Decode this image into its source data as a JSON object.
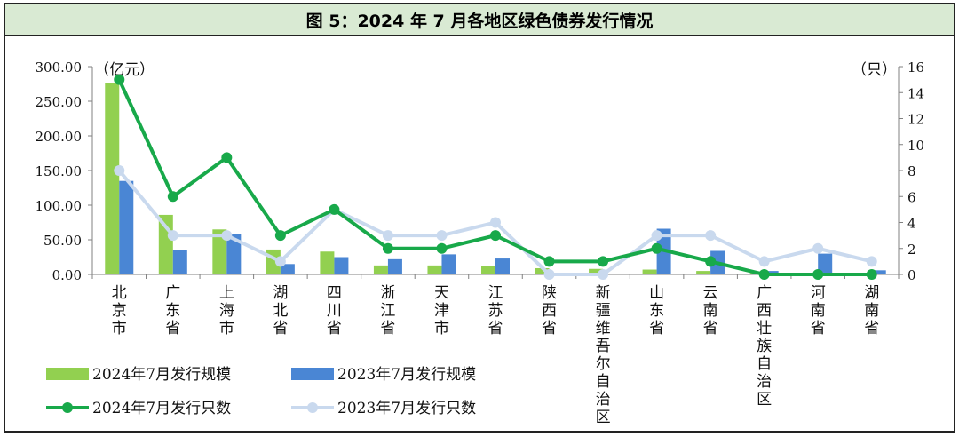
{
  "title": "图 5：2024 年 7 月各地区绿色债券发行情况",
  "chart_data": {
    "type": "bar",
    "categories": [
      "北京市",
      "广东省",
      "上海市",
      "湖北省",
      "四川省",
      "浙江省",
      "天津市",
      "江苏省",
      "陕西省",
      "新疆维吾尔自治区",
      "山东省",
      "云南省",
      "广西壮族自治区",
      "河南省",
      "湖南省"
    ],
    "left_axis": {
      "unit_label": "（亿元）",
      "ylim": [
        0,
        300
      ],
      "ticks": [
        "0.00",
        "50.00",
        "100.00",
        "150.00",
        "200.00",
        "250.00",
        "300.00"
      ]
    },
    "right_axis": {
      "unit_label": "（只）",
      "ylim": [
        0,
        16
      ],
      "ticks": [
        "0",
        "2",
        "4",
        "6",
        "8",
        "10",
        "12",
        "14",
        "16"
      ]
    },
    "series": [
      {
        "name": "2024年7月发行规模",
        "kind": "bar",
        "axis": "left",
        "color": "#92d050",
        "values": [
          276,
          86,
          65,
          36,
          33,
          13,
          13,
          12,
          9,
          8,
          7,
          5,
          2,
          1,
          0.5
        ]
      },
      {
        "name": "2023年7月发行规模",
        "kind": "bar",
        "axis": "left",
        "color": "#4a86d4",
        "values": [
          135,
          35,
          58,
          15,
          25,
          22,
          29,
          23,
          0,
          0,
          66,
          34,
          5,
          30,
          6
        ]
      },
      {
        "name": "2024年7月发行只数",
        "kind": "line",
        "axis": "right",
        "color": "#18a94a",
        "values": [
          15,
          6,
          9,
          3,
          5,
          2,
          2,
          3,
          1,
          1,
          2,
          1,
          0,
          0,
          0
        ]
      },
      {
        "name": "2023年7月发行只数",
        "kind": "line",
        "axis": "right",
        "color": "#c9d9ee",
        "values": [
          8,
          3,
          3,
          1,
          5,
          3,
          3,
          4,
          0,
          0,
          3,
          3,
          1,
          2,
          1
        ]
      }
    ],
    "grid": false,
    "legend_position": "bottom-left"
  }
}
